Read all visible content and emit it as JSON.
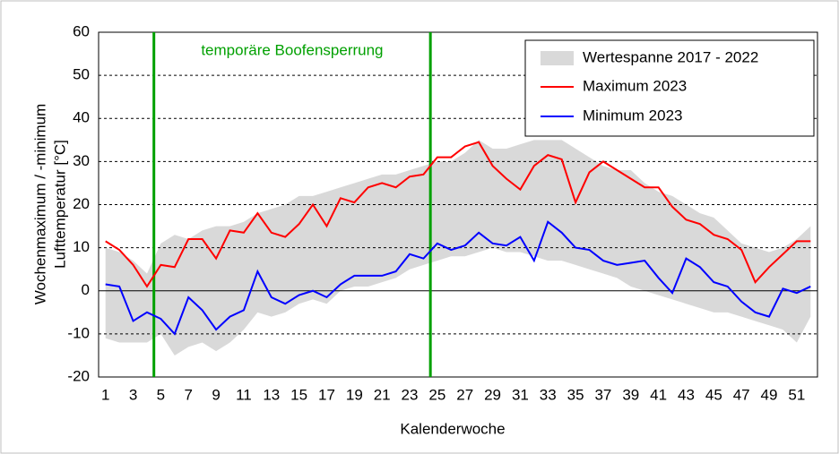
{
  "chart_data": {
    "type": "line",
    "annotation": "temporäre Boofensperrung",
    "xlabel": "Kalenderwoche",
    "ylabel": [
      "Wochenmaximum / -minimum",
      "Lufttemperatur [°C]"
    ],
    "x": [
      1,
      2,
      3,
      4,
      5,
      6,
      7,
      8,
      9,
      10,
      11,
      12,
      13,
      14,
      15,
      16,
      17,
      18,
      19,
      20,
      21,
      22,
      23,
      24,
      25,
      26,
      27,
      28,
      29,
      30,
      31,
      32,
      33,
      34,
      35,
      36,
      37,
      38,
      39,
      40,
      41,
      42,
      43,
      44,
      45,
      46,
      47,
      48,
      49,
      50,
      51,
      52
    ],
    "xlim": [
      0.5,
      52.5
    ],
    "xticks": [
      1,
      3,
      5,
      7,
      9,
      11,
      13,
      15,
      17,
      19,
      21,
      23,
      25,
      27,
      29,
      31,
      33,
      35,
      37,
      39,
      41,
      43,
      45,
      47,
      49,
      51
    ],
    "ylim": [
      -20,
      60
    ],
    "yticks": [
      -20,
      -10,
      0,
      10,
      20,
      30,
      40,
      50,
      60
    ],
    "grid": true,
    "zero_line": true,
    "legend": "upper right",
    "band": {
      "name": "Wertespanne 2017 - 2022",
      "color": "#d9d9d9",
      "upper": [
        10,
        9,
        7,
        4,
        11,
        13,
        12,
        14,
        15,
        15,
        16,
        18,
        19,
        20,
        22,
        22,
        23,
        24,
        25,
        26,
        27,
        27,
        28,
        29,
        30,
        30,
        32,
        35,
        33,
        33,
        34,
        35,
        35,
        35,
        33,
        31,
        29,
        28,
        28,
        25,
        23,
        22,
        20,
        18,
        17,
        14,
        11,
        10,
        9,
        10,
        12,
        15
      ],
      "lower": [
        -11,
        -12,
        -12,
        -12,
        -10,
        -15,
        -13,
        -12,
        -14,
        -12,
        -9,
        -5,
        -6,
        -5,
        -3,
        -2,
        -3,
        0,
        1,
        1,
        2,
        3,
        5,
        6,
        7,
        8,
        8,
        9,
        10,
        9,
        9,
        8,
        7,
        7,
        6,
        5,
        4,
        3,
        1,
        0,
        -1,
        -2,
        -3,
        -4,
        -5,
        -5,
        -6,
        -7,
        -8,
        -9,
        -12,
        -6
      ]
    },
    "series": [
      {
        "name": "Maximum 2023",
        "color": "#ff0000",
        "values": [
          11.5,
          9.5,
          6,
          1,
          6,
          5.5,
          12,
          12,
          7.5,
          14,
          13.5,
          18,
          13.5,
          12.5,
          15.5,
          20,
          15,
          21.5,
          20.5,
          24,
          25,
          24,
          26.5,
          27,
          31,
          31,
          33.5,
          34.5,
          29,
          26,
          23.5,
          29,
          31.5,
          30.5,
          20.5,
          27.5,
          30,
          28,
          26,
          24,
          24,
          19.5,
          16.5,
          15.5,
          13,
          12,
          9.5,
          2,
          5.5,
          8.5,
          11.5,
          11.5
        ]
      },
      {
        "name": "Minimum 2023",
        "color": "#0000ff",
        "values": [
          1.5,
          1,
          -7,
          -5,
          -6.5,
          -10,
          -1.5,
          -4.5,
          -9,
          -6,
          -4.5,
          4.5,
          -1.5,
          -3,
          -1,
          0,
          -1.5,
          1.5,
          3.5,
          3.5,
          3.5,
          4.5,
          8.5,
          7.5,
          11,
          9.5,
          10.5,
          13.5,
          11,
          10.5,
          12.5,
          7,
          16,
          13.5,
          10,
          9.5,
          7,
          6,
          6.5,
          7,
          3,
          -0.5,
          7.5,
          5.5,
          2,
          1,
          -2.5,
          -5,
          -6,
          0.5,
          -0.5,
          1
        ]
      }
    ],
    "markers": {
      "color": "#00a000",
      "x": [
        4.5,
        24.5
      ]
    }
  }
}
